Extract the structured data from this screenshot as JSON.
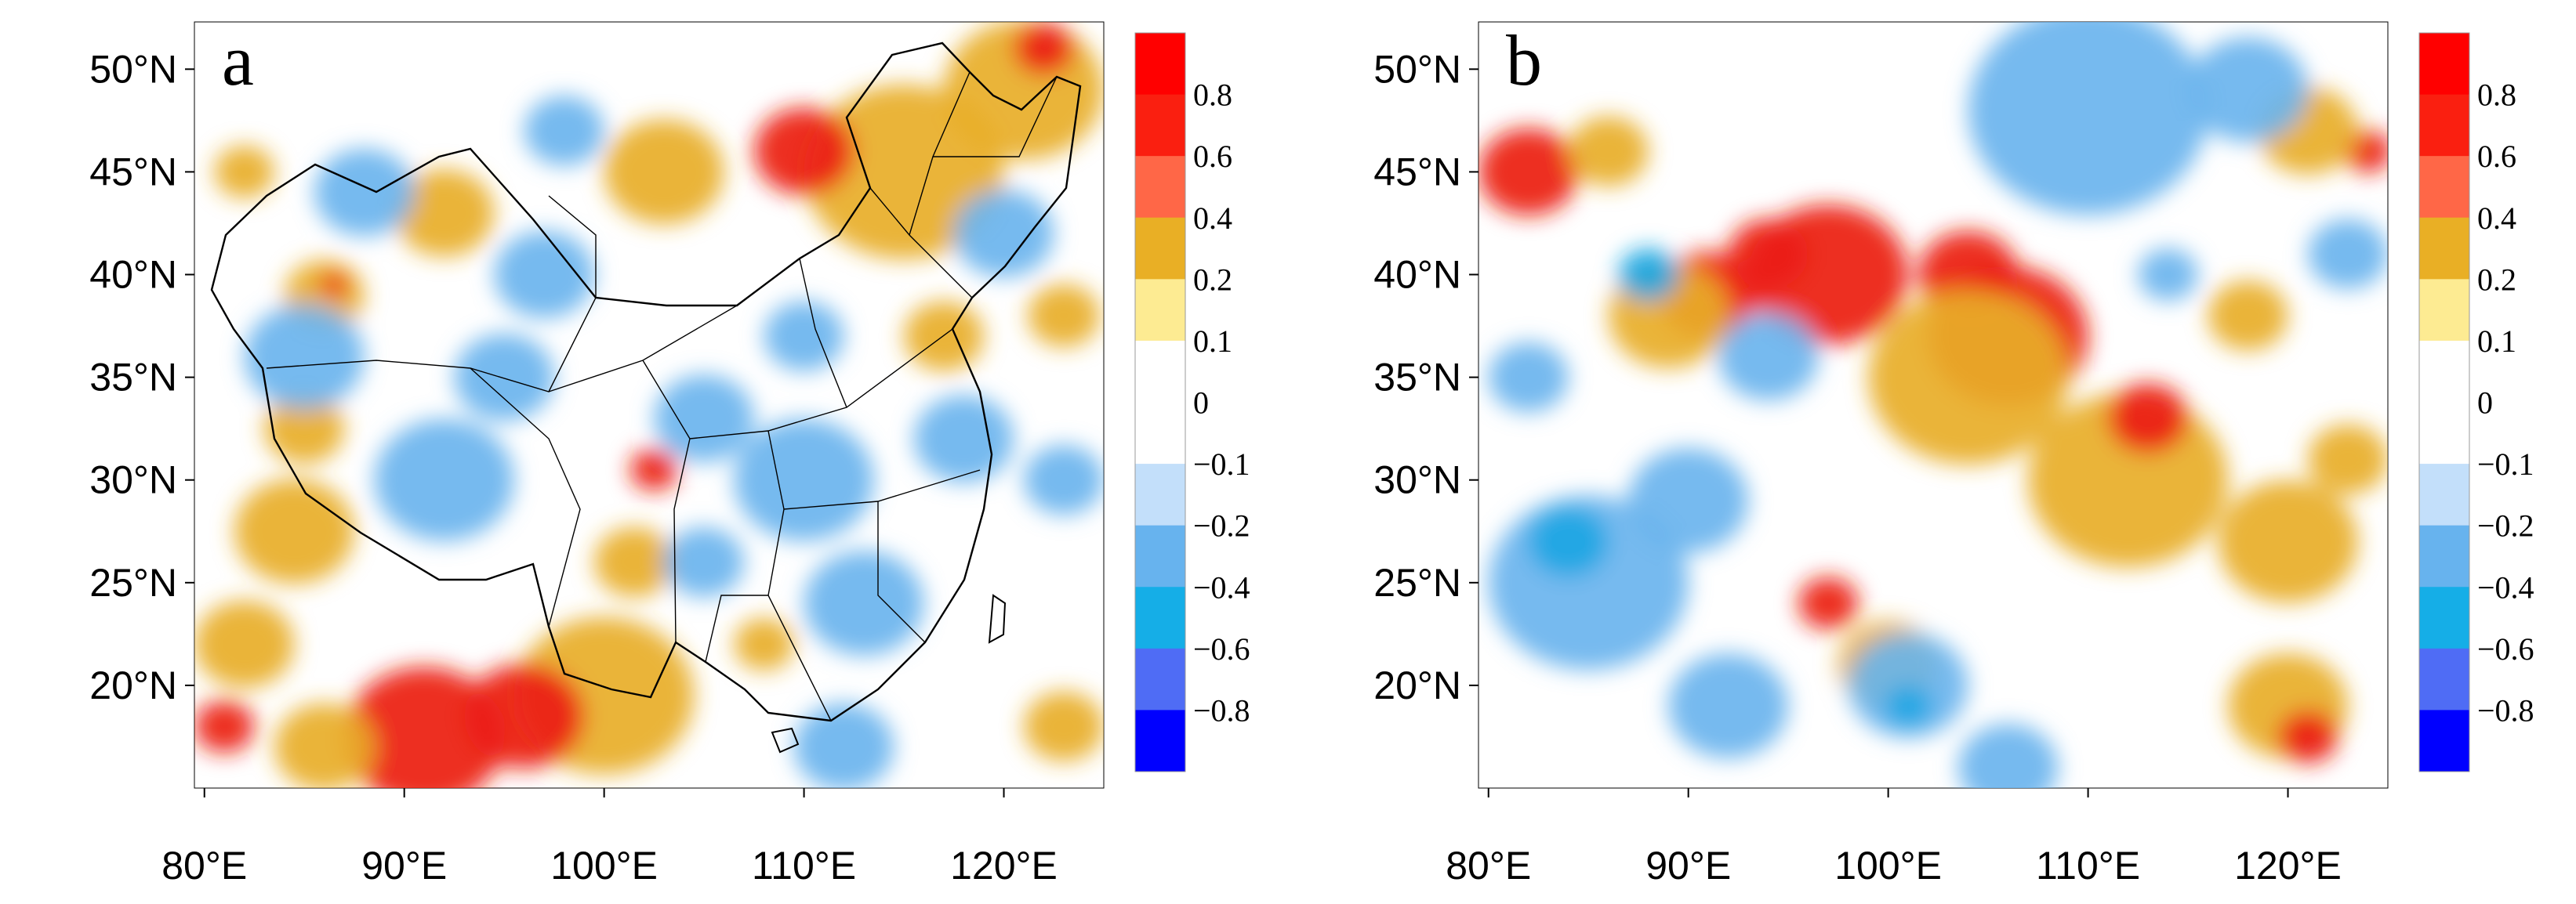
{
  "panels": [
    {
      "letter": "a",
      "anomaly_blobs": [
        {
          "lon": 100,
          "lat": 19.5,
          "r": 4.5,
          "level": 2
        },
        {
          "lon": 91,
          "lat": 17.5,
          "r": 4,
          "level": 3
        },
        {
          "lon": 96,
          "lat": 18.5,
          "r": 3,
          "level": 3
        },
        {
          "lon": 86,
          "lat": 17,
          "r": 2.5,
          "level": 2
        },
        {
          "lon": 81,
          "lat": 18,
          "r": 1.5,
          "level": 3
        },
        {
          "lon": 82,
          "lat": 22,
          "r": 2.5,
          "level": 2
        },
        {
          "lon": 84.5,
          "lat": 27.5,
          "r": 3,
          "level": 2
        },
        {
          "lon": 85,
          "lat": 32.5,
          "r": 2,
          "level": 2
        },
        {
          "lon": 102.5,
          "lat": 30.5,
          "r": 1.2,
          "level": 3
        },
        {
          "lon": 101.5,
          "lat": 26,
          "r": 2,
          "level": 2
        },
        {
          "lon": 115,
          "lat": 45,
          "r": 5,
          "level": 2
        },
        {
          "lon": 110,
          "lat": 46,
          "r": 2.5,
          "level": 3
        },
        {
          "lon": 121,
          "lat": 49,
          "r": 4,
          "level": 2
        },
        {
          "lon": 122,
          "lat": 51,
          "r": 1.5,
          "level": 3
        },
        {
          "lon": 103,
          "lat": 45,
          "r": 3,
          "level": 2
        },
        {
          "lon": 92,
          "lat": 43,
          "r": 2.5,
          "level": 2
        },
        {
          "lon": 86,
          "lat": 39,
          "r": 2,
          "level": 2
        },
        {
          "lon": 86.5,
          "lat": 39.5,
          "r": 0.7,
          "level": 3
        },
        {
          "lon": 82,
          "lat": 45,
          "r": 1.5,
          "level": 2
        },
        {
          "lon": 117,
          "lat": 37,
          "r": 2,
          "level": 2
        },
        {
          "lon": 123,
          "lat": 38,
          "r": 1.8,
          "level": 2
        },
        {
          "lon": 123,
          "lat": 18,
          "r": 2,
          "level": 2
        },
        {
          "lon": 108,
          "lat": 22,
          "r": 1.5,
          "level": 2
        },
        {
          "lon": 92,
          "lat": 30,
          "r": 3.5,
          "level": -2
        },
        {
          "lon": 85,
          "lat": 36,
          "r": 3,
          "level": -2
        },
        {
          "lon": 97,
          "lat": 40,
          "r": 2.5,
          "level": -2
        },
        {
          "lon": 88,
          "lat": 44,
          "r": 2.5,
          "level": -2
        },
        {
          "lon": 95,
          "lat": 35,
          "r": 2.5,
          "level": -2
        },
        {
          "lon": 110,
          "lat": 30,
          "r": 3.5,
          "level": -2
        },
        {
          "lon": 105,
          "lat": 33,
          "r": 2.5,
          "level": -2
        },
        {
          "lon": 113,
          "lat": 24,
          "r": 3,
          "level": -2
        },
        {
          "lon": 118,
          "lat": 32,
          "r": 2.5,
          "level": -2
        },
        {
          "lon": 120,
          "lat": 42,
          "r": 2.5,
          "level": -2
        },
        {
          "lon": 110,
          "lat": 37,
          "r": 2,
          "level": -2
        },
        {
          "lon": 105,
          "lat": 26,
          "r": 2,
          "level": -2
        },
        {
          "lon": 112,
          "lat": 17,
          "r": 2.5,
          "level": -2
        },
        {
          "lon": 98,
          "lat": 47,
          "r": 2,
          "level": -2
        },
        {
          "lon": 123,
          "lat": 30,
          "r": 2,
          "level": -2
        }
      ]
    },
    {
      "letter": "b",
      "anomaly_blobs": [
        {
          "lon": 97,
          "lat": 40,
          "r": 4,
          "level": 3
        },
        {
          "lon": 91,
          "lat": 39,
          "r": 2.5,
          "level": 3
        },
        {
          "lon": 106,
          "lat": 37,
          "r": 4,
          "level": 3
        },
        {
          "lon": 104,
          "lat": 40,
          "r": 2.5,
          "level": 3
        },
        {
          "lon": 82,
          "lat": 45,
          "r": 2.5,
          "level": 3
        },
        {
          "lon": 124,
          "lat": 46,
          "r": 1.2,
          "level": 3
        },
        {
          "lon": 94,
          "lat": 41,
          "r": 2,
          "level": 3
        },
        {
          "lon": 104,
          "lat": 35,
          "r": 5,
          "level": 2
        },
        {
          "lon": 112,
          "lat": 30,
          "r": 5,
          "level": 2
        },
        {
          "lon": 120,
          "lat": 27,
          "r": 3.5,
          "level": 2
        },
        {
          "lon": 100,
          "lat": 21,
          "r": 2.5,
          "level": 2
        },
        {
          "lon": 97,
          "lat": 24,
          "r": 1.5,
          "level": 3
        },
        {
          "lon": 120,
          "lat": 19,
          "r": 3,
          "level": 2
        },
        {
          "lon": 121,
          "lat": 17.5,
          "r": 1.5,
          "level": 3
        },
        {
          "lon": 89,
          "lat": 38,
          "r": 3,
          "level": 2
        },
        {
          "lon": 113,
          "lat": 33,
          "r": 2,
          "level": 3
        },
        {
          "lon": 86,
          "lat": 46,
          "r": 2,
          "level": 2
        },
        {
          "lon": 121,
          "lat": 47,
          "r": 2.5,
          "level": 2
        },
        {
          "lon": 123,
          "lat": 31,
          "r": 2,
          "level": 2
        },
        {
          "lon": 118,
          "lat": 38,
          "r": 2,
          "level": 2
        },
        {
          "lon": 85,
          "lat": 25,
          "r": 5,
          "level": -2
        },
        {
          "lon": 84,
          "lat": 27,
          "r": 2,
          "level": -3
        },
        {
          "lon": 101,
          "lat": 20,
          "r": 3,
          "level": -2
        },
        {
          "lon": 101,
          "lat": 19,
          "r": 1.2,
          "level": -3
        },
        {
          "lon": 110,
          "lat": 48,
          "r": 6,
          "level": -2
        },
        {
          "lon": 118,
          "lat": 49,
          "r": 3,
          "level": -2
        },
        {
          "lon": 90,
          "lat": 29,
          "r": 3,
          "level": -2
        },
        {
          "lon": 94,
          "lat": 36,
          "r": 2.5,
          "level": -2
        },
        {
          "lon": 88,
          "lat": 40,
          "r": 1.5,
          "level": -3
        },
        {
          "lon": 82,
          "lat": 35,
          "r": 2,
          "level": -2
        },
        {
          "lon": 92,
          "lat": 19,
          "r": 3,
          "level": -2
        },
        {
          "lon": 106,
          "lat": 16,
          "r": 2.5,
          "level": -2
        },
        {
          "lon": 123,
          "lat": 41,
          "r": 2,
          "level": -2
        },
        {
          "lon": 114,
          "lat": 40,
          "r": 1.5,
          "level": -2
        }
      ]
    }
  ],
  "axes": {
    "lon_ticks": [
      "80°E",
      "90°E",
      "100°E",
      "110°E",
      "120°E"
    ],
    "lat_ticks": [
      "20°N",
      "25°N",
      "30°N",
      "35°N",
      "40°N",
      "45°N",
      "50°N"
    ]
  },
  "colorbar": {
    "labels": [
      "0.8",
      "0.6",
      "0.4",
      "0.2",
      "0.1",
      "0",
      "−0.1",
      "−0.2",
      "−0.4",
      "−0.6",
      "−0.8"
    ],
    "colors": [
      "#ff0000",
      "#fa1f10",
      "#ff6747",
      "#e9af25",
      "#fdeb92",
      "#ffffff",
      "#ffffff",
      "#c3dffa",
      "#67b3ee",
      "#15aee7",
      "#4f6cf5",
      "#0000ff"
    ]
  },
  "colors": {
    "level_3": "#ec1d12",
    "level_2": "#e8ae27",
    "level_-2": "#6ab4ee",
    "level_-3": "#1aa6e4"
  }
}
